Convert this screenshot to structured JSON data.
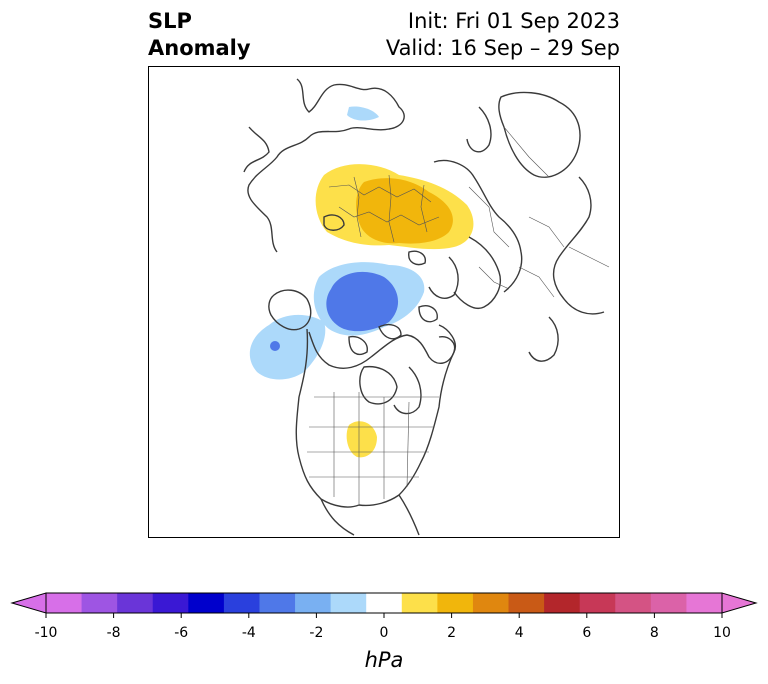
{
  "title": {
    "left_line1": "SLP",
    "left_line2": "Anomaly",
    "right_line1": "Init: Fri 01 Sep 2023",
    "right_line2": "Valid: 16 Sep – 29 Sep"
  },
  "colorbar": {
    "unit": "hPa",
    "ticks": [
      "-10",
      "-8",
      "-6",
      "-4",
      "-2",
      "0",
      "2",
      "4",
      "6",
      "8",
      "10"
    ],
    "colors": [
      "#d76fe8",
      "#9e55e3",
      "#6a35d8",
      "#3a18d4",
      "#0000cc",
      "#2a40dd",
      "#4f78e8",
      "#79b0f2",
      "#acd9fa",
      "#ffffff",
      "#fde04a",
      "#f1b60c",
      "#e0870f",
      "#c95a16",
      "#b3262b",
      "#c73857",
      "#d45384",
      "#db62a8",
      "#e676d6"
    ],
    "extend_low_color": "#d76fe8",
    "extend_high_color": "#e676d6"
  },
  "map": {
    "region": "Northern Hemisphere polar projection",
    "anomalies": [
      {
        "name": "positive-anomaly-siberia",
        "color": "#fde04a"
      },
      {
        "name": "positive-anomaly-siberia-core",
        "color": "#f1b60c"
      },
      {
        "name": "negative-anomaly-arctic",
        "color": "#acd9fa"
      },
      {
        "name": "negative-anomaly-arctic-core",
        "color": "#4f78e8"
      },
      {
        "name": "negative-anomaly-gulf-of-alaska",
        "color": "#acd9fa"
      },
      {
        "name": "positive-anomaly-central-us",
        "color": "#fde04a"
      }
    ]
  }
}
